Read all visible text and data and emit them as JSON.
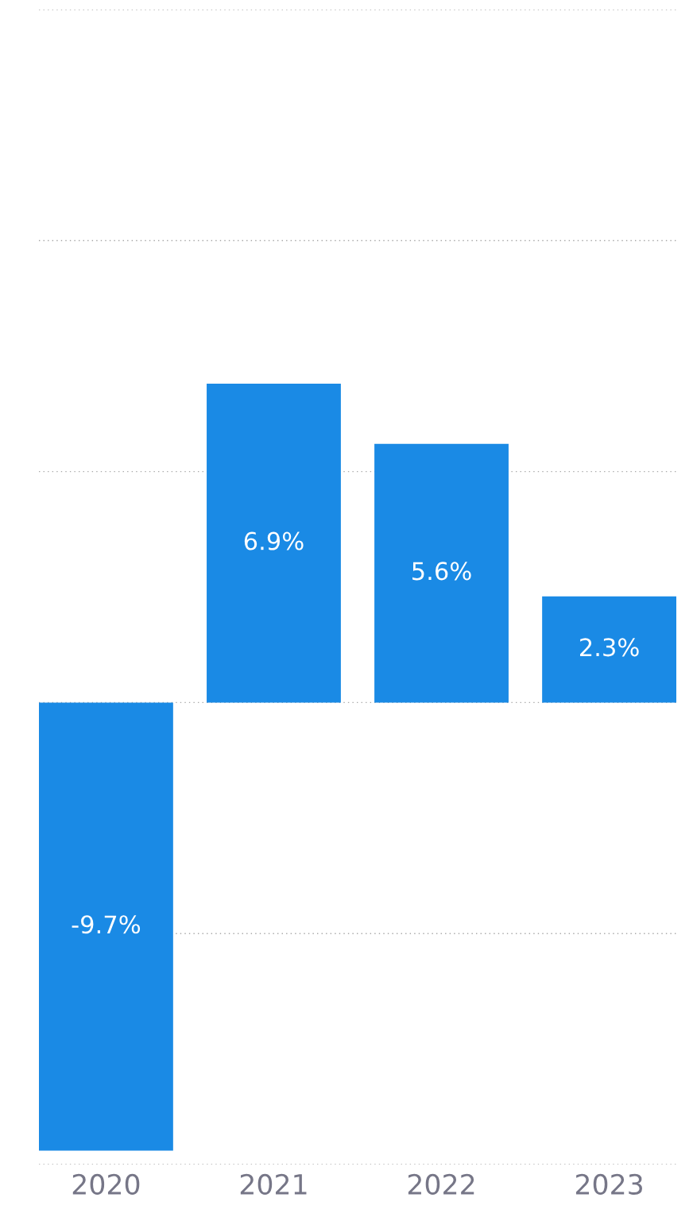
{
  "chart_data": {
    "type": "bar",
    "categories": [
      "2020",
      "2021",
      "2022",
      "2023"
    ],
    "values": [
      -9.7,
      6.9,
      5.6,
      2.3
    ],
    "value_labels": [
      "-9.7%",
      "6.9%",
      "5.6%",
      "2.3%"
    ],
    "color": "#1a8ae5",
    "ylim": [
      -10,
      15
    ],
    "yticks": [
      {
        "value": -10,
        "label": null
      },
      {
        "value": -5,
        "label": null
      },
      {
        "value": 0,
        "label": null
      },
      {
        "value": 5,
        "label": null
      },
      {
        "value": 10,
        "label": null
      },
      {
        "value": 15,
        "label": null
      }
    ],
    "grid": "y",
    "tick_labels": "x"
  }
}
